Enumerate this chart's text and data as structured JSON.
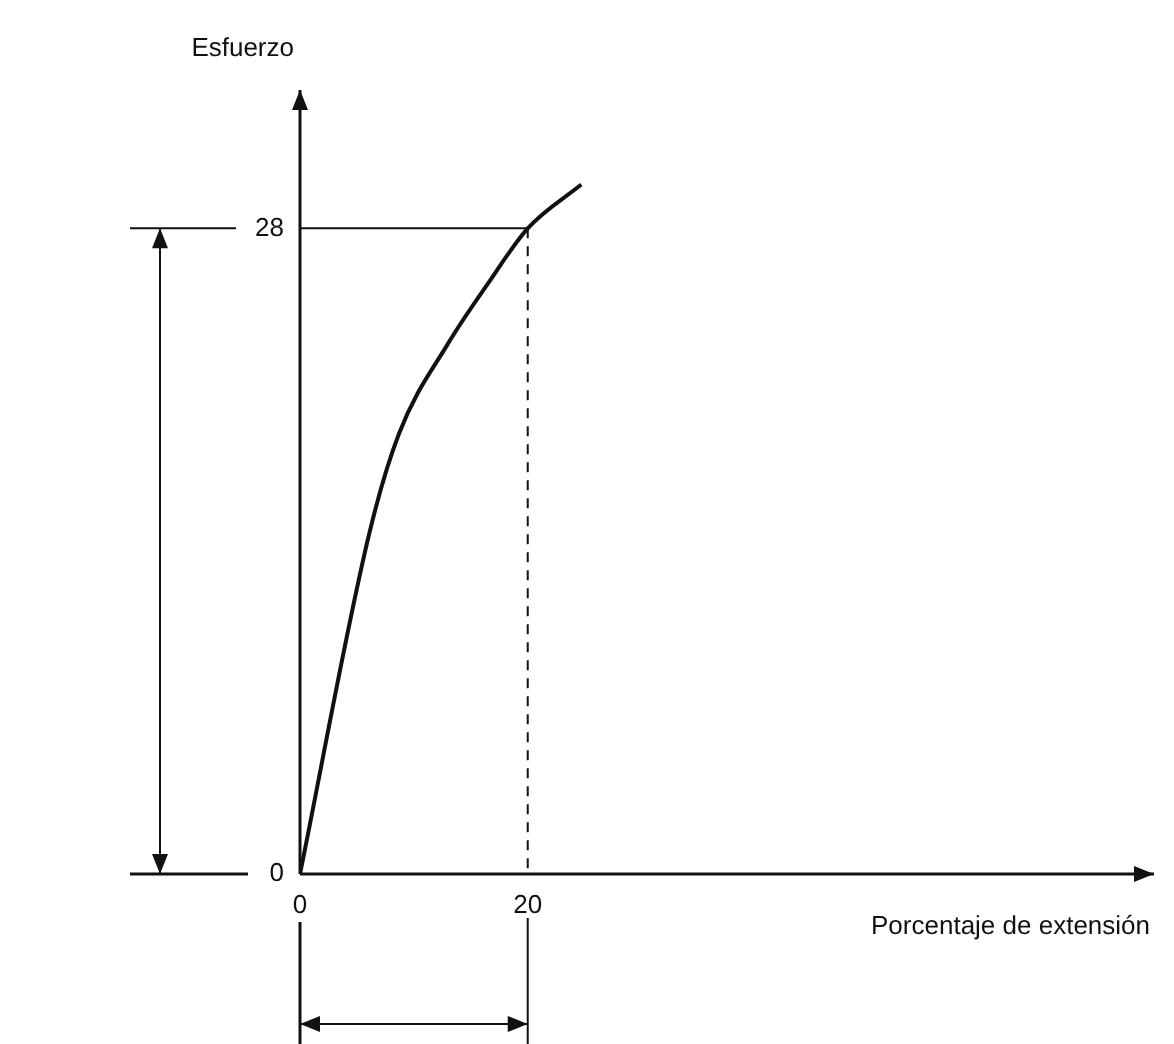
{
  "chart_data": {
    "type": "line",
    "xlabel": "Porcentaje de extensión",
    "ylabel": "Esfuerzo",
    "x": [
      0,
      6.1,
      8.7,
      13,
      16.5,
      20,
      24.7
    ],
    "series": [
      {
        "color": "#111111",
        "values": [
          0,
          14.8,
          19.1,
          23,
          25.6,
          28,
          29.9
        ]
      }
    ],
    "xlim": [
      0,
      75
    ],
    "ylim": [
      0,
      34
    ],
    "xticks": [
      0,
      20
    ],
    "yticks": [
      0,
      28
    ],
    "ref_lines": [
      {
        "axis": "x",
        "value": 20,
        "line_style": "dashed"
      },
      {
        "axis": "y",
        "value": 28,
        "line_style": "solid"
      }
    ],
    "grid": false,
    "legend": false,
    "marker": "none",
    "line_style": "solid"
  }
}
